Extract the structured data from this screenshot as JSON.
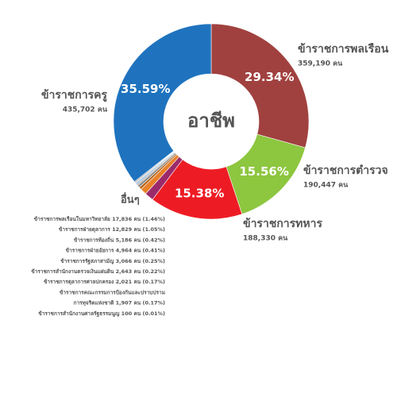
{
  "chart_data": {
    "type": "pie",
    "center_label": "อาชีพ",
    "categories": [
      "ข้าราชการพลเรือน",
      "ข้าราชการตำรวจ",
      "ข้าราชการทหาร",
      null,
      null,
      null,
      null,
      null,
      null,
      null,
      null,
      null,
      "ข้าราชการครู"
    ],
    "values": [
      29.34,
      15.56,
      15.38,
      1.46,
      1.05,
      0.42,
      0.41,
      0.25,
      0.22,
      0.17,
      0.17,
      0.01,
      35.59
    ],
    "value_labels": [
      "29.34%",
      "15.56%",
      "15.38%",
      null,
      null,
      null,
      null,
      null,
      null,
      null,
      null,
      null,
      "35.59%"
    ],
    "counts": [
      359190,
      190447,
      188330,
      null,
      null,
      null,
      null,
      null,
      null,
      null,
      null,
      null,
      435702
    ],
    "count_labels": [
      "359,190 คน",
      "190,447 คน",
      "188,330 คน",
      null,
      null,
      null,
      null,
      null,
      null,
      null,
      null,
      null,
      "435,702 คน"
    ],
    "colors": [
      "#a0413f",
      "#8dc63f",
      "#ed1c24",
      "#9b2a6a",
      "#e8822a",
      "#b5651d",
      "#8a8a8a",
      "#a9a9a9",
      "#6fa8dc",
      "#c0c0c0",
      "#7f7f7f",
      "#d9d9d9",
      "#1f73be"
    ],
    "other_title": "อื่นๆ",
    "other_labels": [
      [
        "ข้าราชการพลเรือนในมหาวิทยาลัย 17,836 คน (1.46%)"
      ],
      [
        "ข้าราชการฝ่ายตุลาการ 12,829 คน (1.05%)"
      ],
      [
        "ข้าราชการท้องถิ่น 5,186 คน (0.42%)"
      ],
      [
        "ข้าราชการฝ่ายอัยการ 4,964 คน (0.41%)"
      ],
      [
        "ข้าราชการรัฐสภาสามัญ 3,066 คน (0.25%)"
      ],
      [
        "ข้าราชการสำนักงานตรวจเงินแผ่นดิน 2,643 คน (0.22%)"
      ],
      [
        "ข้าราชการตุลาการศาลปกครอง 2,021 คน (0.17%)"
      ],
      [
        "ข้าราชการคณะกรรมการป้องกันและปราบปราม",
        "การทุจริตแห่งชาติ 1,907 คน (0.17%)"
      ],
      [
        "ข้าราชการสำนักงานศาลรัฐธรรมนูญ 100 คน (0.01%)"
      ]
    ]
  }
}
